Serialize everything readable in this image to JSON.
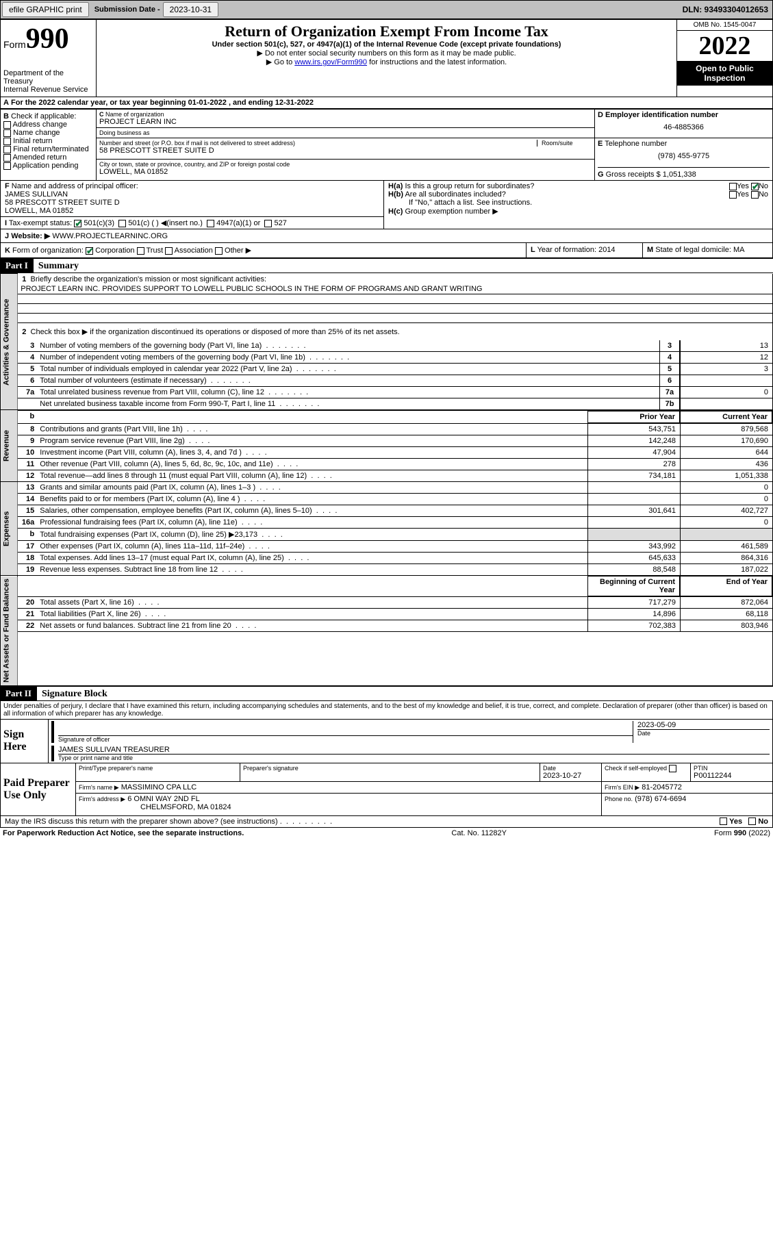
{
  "topbar": {
    "efile": "efile GRAPHIC print",
    "sub_label": "Submission Date - ",
    "sub_date": "2023-10-31",
    "dln": "DLN: 93493304012653"
  },
  "header": {
    "form_word": "Form",
    "form_num": "990",
    "dept": "Department of the Treasury",
    "irs": "Internal Revenue Service",
    "title": "Return of Organization Exempt From Income Tax",
    "subtitle": "Under section 501(c), 527, or 4947(a)(1) of the Internal Revenue Code (except private foundations)",
    "note1": "▶ Do not enter social security numbers on this form as it may be made public.",
    "note2_pre": "▶ Go to ",
    "note2_link": "www.irs.gov/Form990",
    "note2_post": " for instructions and the latest information.",
    "omb": "OMB No. 1545-0047",
    "year": "2022",
    "open": "Open to Public Inspection"
  },
  "A": {
    "text": "For the 2022 calendar year, or tax year beginning 01-01-2022   , and ending 12-31-2022"
  },
  "B": {
    "label": "Check if applicable:",
    "opts": [
      "Address change",
      "Name change",
      "Initial return",
      "Final return/terminated",
      "Amended return",
      "Application pending"
    ]
  },
  "C": {
    "name_label": "Name of organization",
    "name": "PROJECT LEARN INC",
    "dba_label": "Doing business as",
    "dba": "",
    "addr_label": "Number and street (or P.O. box if mail is not delivered to street address)",
    "room_label": "Room/suite",
    "addr": "58 PRESCOTT STREET SUITE D",
    "city_label": "City or town, state or province, country, and ZIP or foreign postal code",
    "city": "LOWELL, MA  01852"
  },
  "D": {
    "label": "Employer identification number",
    "val": "46-4885366"
  },
  "E": {
    "label": "Telephone number",
    "val": "(978) 455-9775"
  },
  "G": {
    "label": "Gross receipts $",
    "val": "1,051,338"
  },
  "F": {
    "label": "Name and address of principal officer:",
    "name": "JAMES SULLIVAN",
    "addr": "58 PRESCOTT STREET SUITE D",
    "city": "LOWELL, MA  01852"
  },
  "H": {
    "a": "Is this a group return for subordinates?",
    "b": "Are all subordinates included?",
    "b_note": "If \"No,\" attach a list. See instructions.",
    "c": "Group exemption number ▶",
    "yes": "Yes",
    "no": "No"
  },
  "I": {
    "label": "Tax-exempt status:",
    "o1": "501(c)(3)",
    "o2": "501(c) (  ) ◀(insert no.)",
    "o3": "4947(a)(1) or",
    "o4": "527"
  },
  "J": {
    "label": "Website: ▶",
    "val": "WWW.PROJECTLEARNINC.ORG"
  },
  "K": {
    "label": "Form of organization:",
    "o1": "Corporation",
    "o2": "Trust",
    "o3": "Association",
    "o4": "Other ▶"
  },
  "L": {
    "label": "Year of formation:",
    "val": "2014"
  },
  "M": {
    "label": "State of legal domicile:",
    "val": "MA"
  },
  "part1": {
    "header": "Part I",
    "title": "Summary",
    "l1": "Briefly describe the organization's mission or most significant activities:",
    "mission": "PROJECT LEARN INC. PROVIDES SUPPORT TO LOWELL PUBLIC SCHOOLS IN THE FORM OF PROGRAMS AND GRANT WRITING",
    "l2": "Check this box ▶      if the organization discontinued its operations or disposed of more than 25% of its net assets.",
    "sections": {
      "gov": "Activities & Governance",
      "rev": "Revenue",
      "exp": "Expenses",
      "net": "Net Assets or Fund Balances"
    },
    "prior": "Prior Year",
    "current": "Current Year",
    "begin": "Beginning of Current Year",
    "end": "End of Year",
    "lines_gov": [
      {
        "n": "3",
        "t": "Number of voting members of the governing body (Part VI, line 1a)",
        "nb": "3",
        "v": "13"
      },
      {
        "n": "4",
        "t": "Number of independent voting members of the governing body (Part VI, line 1b)",
        "nb": "4",
        "v": "12"
      },
      {
        "n": "5",
        "t": "Total number of individuals employed in calendar year 2022 (Part V, line 2a)",
        "nb": "5",
        "v": "3"
      },
      {
        "n": "6",
        "t": "Total number of volunteers (estimate if necessary)",
        "nb": "6",
        "v": ""
      },
      {
        "n": "7a",
        "t": "Total unrelated business revenue from Part VIII, column (C), line 12",
        "nb": "7a",
        "v": "0"
      },
      {
        "n": "",
        "t": "Net unrelated business taxable income from Form 990-T, Part I, line 11",
        "nb": "7b",
        "v": ""
      }
    ],
    "lines_rev": [
      {
        "n": "8",
        "t": "Contributions and grants (Part VIII, line 1h)",
        "p": "543,751",
        "c": "879,568"
      },
      {
        "n": "9",
        "t": "Program service revenue (Part VIII, line 2g)",
        "p": "142,248",
        "c": "170,690"
      },
      {
        "n": "10",
        "t": "Investment income (Part VIII, column (A), lines 3, 4, and 7d )",
        "p": "47,904",
        "c": "644"
      },
      {
        "n": "11",
        "t": "Other revenue (Part VIII, column (A), lines 5, 6d, 8c, 9c, 10c, and 11e)",
        "p": "278",
        "c": "436"
      },
      {
        "n": "12",
        "t": "Total revenue—add lines 8 through 11 (must equal Part VIII, column (A), line 12)",
        "p": "734,181",
        "c": "1,051,338"
      }
    ],
    "lines_exp": [
      {
        "n": "13",
        "t": "Grants and similar amounts paid (Part IX, column (A), lines 1–3 )",
        "p": "",
        "c": "0"
      },
      {
        "n": "14",
        "t": "Benefits paid to or for members (Part IX, column (A), line 4 )",
        "p": "",
        "c": "0"
      },
      {
        "n": "15",
        "t": "Salaries, other compensation, employee benefits (Part IX, column (A), lines 5–10)",
        "p": "301,641",
        "c": "402,727"
      },
      {
        "n": "16a",
        "t": "Professional fundraising fees (Part IX, column (A), line 11e)",
        "p": "",
        "c": "0"
      },
      {
        "n": "b",
        "t": "Total fundraising expenses (Part IX, column (D), line 25) ▶23,173",
        "p": "shaded",
        "c": "shaded"
      },
      {
        "n": "17",
        "t": "Other expenses (Part IX, column (A), lines 11a–11d, 11f–24e)",
        "p": "343,992",
        "c": "461,589"
      },
      {
        "n": "18",
        "t": "Total expenses. Add lines 13–17 (must equal Part IX, column (A), line 25)",
        "p": "645,633",
        "c": "864,316"
      },
      {
        "n": "19",
        "t": "Revenue less expenses. Subtract line 18 from line 12",
        "p": "88,548",
        "c": "187,022"
      }
    ],
    "lines_net": [
      {
        "n": "20",
        "t": "Total assets (Part X, line 16)",
        "p": "717,279",
        "c": "872,064"
      },
      {
        "n": "21",
        "t": "Total liabilities (Part X, line 26)",
        "p": "14,896",
        "c": "68,118"
      },
      {
        "n": "22",
        "t": "Net assets or fund balances. Subtract line 21 from line 20",
        "p": "702,383",
        "c": "803,946"
      }
    ]
  },
  "part2": {
    "header": "Part II",
    "title": "Signature Block",
    "decl": "Under penalties of perjury, I declare that I have examined this return, including accompanying schedules and statements, and to the best of my knowledge and belief, it is true, correct, and complete. Declaration of preparer (other than officer) is based on all information of which preparer has any knowledge.",
    "sign_here": "Sign Here",
    "sig_officer": "Signature of officer",
    "date": "Date",
    "sig_date": "2023-05-09",
    "name_title": "JAMES SULLIVAN  TREASURER",
    "name_title_label": "Type or print name and title",
    "paid": "Paid Preparer Use Only",
    "prep_name_label": "Print/Type preparer's name",
    "prep_sig_label": "Preparer's signature",
    "prep_date_label": "Date",
    "prep_date": "2023-10-27",
    "check_self": "Check        if self-employed",
    "ptin_label": "PTIN",
    "ptin": "P00112244",
    "firm_name_label": "Firm's name    ▶",
    "firm_name": "MASSIMINO CPA LLC",
    "firm_ein_label": "Firm's EIN ▶",
    "firm_ein": "81-2045772",
    "firm_addr_label": "Firm's address ▶",
    "firm_addr": "6 OMNI WAY 2ND FL",
    "firm_city": "CHELMSFORD, MA  01824",
    "phone_label": "Phone no.",
    "phone": "(978) 674-6694",
    "discuss": "May the IRS discuss this return with the preparer shown above? (see instructions)"
  },
  "footer": {
    "left": "For Paperwork Reduction Act Notice, see the separate instructions.",
    "mid": "Cat. No. 11282Y",
    "right_pre": "Form ",
    "right_bold": "990",
    "right_post": " (2022)"
  }
}
